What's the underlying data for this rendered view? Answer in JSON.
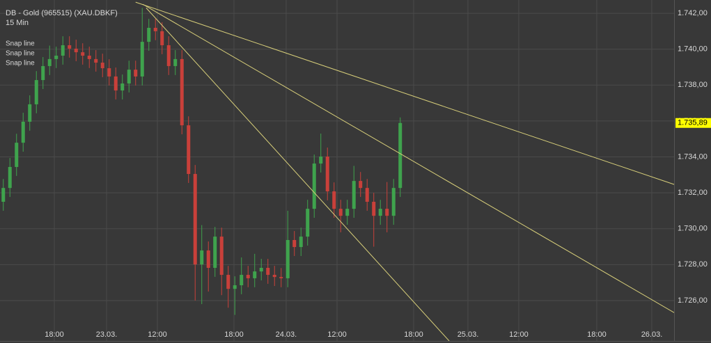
{
  "chart_data": {
    "type": "candlestick",
    "title": "DB - Gold (965515) (XAU.DBKF)",
    "subtitle": "15 Min",
    "up_color": "#3fa34d",
    "down_color": "#c9403a",
    "grid": true,
    "xlim": [
      -0.5,
      101.4
    ],
    "xticks": [
      {
        "value": 7.71,
        "label": "18:00"
      },
      {
        "value": 15.61,
        "label": "23.03."
      },
      {
        "value": 23.29,
        "label": "12:00"
      },
      {
        "value": 34.87,
        "label": "18:00"
      },
      {
        "value": 42.76,
        "label": "24.03."
      },
      {
        "value": 50.45,
        "label": "12:00"
      },
      {
        "value": 62.03,
        "label": "18:00"
      },
      {
        "value": 70.24,
        "label": "25.03."
      },
      {
        "value": 77.92,
        "label": "12:00"
      },
      {
        "value": 89.71,
        "label": "18:00"
      },
      {
        "value": 98.03,
        "label": "26.03."
      }
    ],
    "ylim": [
      1723.75,
      1742.74
    ],
    "yticks": [
      {
        "value": 1726,
        "label": "1.726,00"
      },
      {
        "value": 1728,
        "label": "1.728,00"
      },
      {
        "value": 1730,
        "label": "1.730,00"
      },
      {
        "value": 1732,
        "label": "1.732,00"
      },
      {
        "value": 1734,
        "label": "1.734,00"
      },
      {
        "value": 1736,
        "label": "1.736,00"
      },
      {
        "value": 1738,
        "label": "1.738,00"
      },
      {
        "value": 1740,
        "label": "1.740,00"
      },
      {
        "value": 1742,
        "label": "1.742,00"
      }
    ],
    "last": {
      "value": 1735.89,
      "label": "1.735,89"
    },
    "open": [
      1731.5,
      1732.27,
      1733.44,
      1734.79,
      1735.96,
      1736.93,
      1738.28,
      1739.06,
      1739.45,
      1739.64,
      1740.22,
      1740.03,
      1739.83,
      1739.64,
      1739.45,
      1739.25,
      1738.94,
      1738.48,
      1737.7,
      1738.09,
      1738.86,
      1738.48,
      1740.41,
      1741.19,
      1741.0,
      1740.22,
      1739.06,
      1739.45,
      1735.76,
      1733.05,
      1728.01,
      1728.79,
      1727.82,
      1729.56,
      1727.43,
      1726.65,
      1726.85,
      1727.43,
      1727.24,
      1727.62,
      1727.82,
      1727.43,
      1727.31,
      1727.24,
      1729.37,
      1728.98,
      1729.56,
      1731.11,
      1733.63,
      1734.02,
      1732.08,
      1731.11,
      1730.72,
      1731.11,
      1732.66,
      1732.27,
      1731.5,
      1730.72,
      1731.11,
      1730.72,
      1732.27
    ],
    "high": [
      1732.77,
      1733.94,
      1735.29,
      1736.46,
      1737.43,
      1738.78,
      1739.56,
      1740.2,
      1740.14,
      1740.72,
      1740.72,
      1740.53,
      1740.33,
      1740.14,
      1739.95,
      1739.75,
      1739.44,
      1738.98,
      1738.59,
      1739.36,
      1739.36,
      1742.3,
      1741.69,
      1741.69,
      1741.5,
      1740.72,
      1739.95,
      1739.95,
      1736.26,
      1733.55,
      1730.2,
      1729.29,
      1730.1,
      1730.06,
      1727.93,
      1727.35,
      1728.4,
      1727.93,
      1728.6,
      1728.32,
      1728.32,
      1727.93,
      1727.81,
      1731.0,
      1729.87,
      1730.06,
      1731.61,
      1734.13,
      1735.3,
      1734.52,
      1732.58,
      1731.61,
      1731.61,
      1733.5,
      1733.16,
      1732.77,
      1732.0,
      1731.61,
      1732.6,
      1732.77,
      1736.2
    ],
    "low": [
      1731.0,
      1731.77,
      1732.94,
      1734.29,
      1735.46,
      1736.43,
      1737.78,
      1738.56,
      1738.95,
      1739.14,
      1739.53,
      1739.33,
      1739.14,
      1738.95,
      1738.75,
      1738.44,
      1737.98,
      1737.2,
      1737.2,
      1737.59,
      1737.98,
      1737.98,
      1739.91,
      1740.5,
      1739.72,
      1738.56,
      1738.56,
      1735.26,
      1732.55,
      1726.0,
      1725.8,
      1726.5,
      1727.32,
      1726.3,
      1725.6,
      1725.2,
      1726.35,
      1726.74,
      1726.74,
      1727.12,
      1726.93,
      1726.81,
      1726.74,
      1726.74,
      1728.48,
      1728.48,
      1729.06,
      1730.61,
      1733.13,
      1731.58,
      1730.61,
      1729.8,
      1730.22,
      1730.61,
      1731.77,
      1731.0,
      1729.0,
      1730.22,
      1729.8,
      1730.22,
      1731.77
    ],
    "close": [
      1732.27,
      1733.44,
      1734.79,
      1735.96,
      1736.93,
      1738.28,
      1739.06,
      1739.45,
      1739.64,
      1740.22,
      1740.03,
      1739.83,
      1739.64,
      1739.45,
      1739.25,
      1738.94,
      1738.48,
      1737.7,
      1738.09,
      1738.86,
      1738.48,
      1740.41,
      1741.19,
      1741.0,
      1740.22,
      1739.06,
      1739.45,
      1735.76,
      1733.05,
      1728.01,
      1728.79,
      1727.82,
      1729.56,
      1727.43,
      1726.65,
      1726.85,
      1727.43,
      1727.24,
      1727.62,
      1727.82,
      1727.43,
      1727.31,
      1727.24,
      1729.37,
      1728.98,
      1729.56,
      1731.11,
      1733.63,
      1734.02,
      1732.08,
      1731.11,
      1730.72,
      1731.11,
      1732.66,
      1732.27,
      1731.5,
      1730.72,
      1731.11,
      1730.72,
      1732.27,
      1735.89
    ],
    "drawings": [
      {
        "label": "Snap line",
        "color": "#d8cf7a",
        "x": [
          20.0,
          107.0
        ],
        "y": [
          1742.62,
          1731.77
        ]
      },
      {
        "label": "Snap line",
        "color": "#d8cf7a",
        "x": [
          21.1,
          107.0
        ],
        "y": [
          1742.5,
          1724.13
        ]
      },
      {
        "label": "Snap line",
        "color": "#d8cf7a",
        "x": [
          21.6,
          67.4
        ],
        "y": [
          1742.3,
          1723.75
        ]
      }
    ]
  }
}
